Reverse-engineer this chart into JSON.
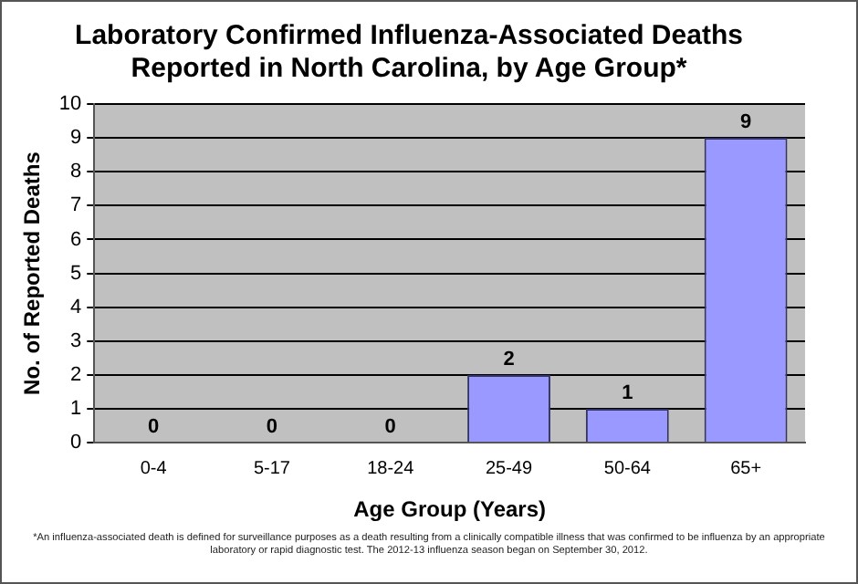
{
  "chart_data": {
    "type": "bar",
    "title": "Laboratory Confirmed Influenza-Associated Deaths\nReported in North Carolina, by Age Group*",
    "xlabel": "Age Group (Years)",
    "ylabel": "No. of Reported Deaths",
    "categories": [
      "0-4",
      "5-17",
      "18-24",
      "25-49",
      "50-64",
      "65+"
    ],
    "values": [
      0,
      0,
      0,
      2,
      1,
      9
    ],
    "color": "#9999ff",
    "ylim": [
      0,
      10
    ],
    "yticks": [
      0,
      1,
      2,
      3,
      4,
      5,
      6,
      7,
      8,
      9,
      10
    ],
    "grid": "y",
    "data_labels": true,
    "legend": false,
    "annotations": [
      "*An influenza-associated death is defined for surveillance purposes as a death resulting from a clinically compatible illness that was confirmed to be influenza by an appropriate laboratory or rapid diagnostic test.  The 2012-13 influenza season began on September 30, 2012."
    ]
  }
}
